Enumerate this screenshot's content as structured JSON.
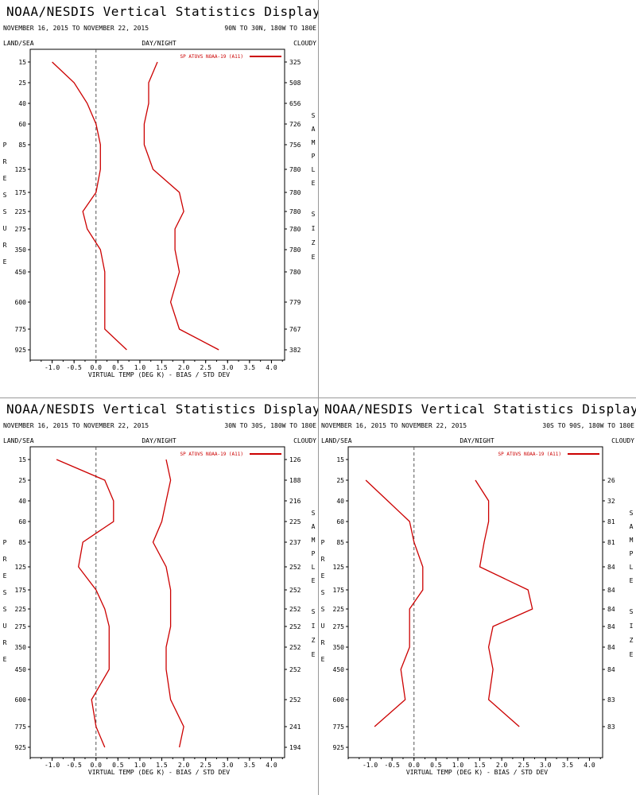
{
  "colors": {
    "series": "#cc0000",
    "axis": "#000000",
    "zero_line": "#555555"
  },
  "x_ticks": [
    "-1.0",
    "-0.5",
    "0.0",
    "0.5",
    "1.0",
    "1.5",
    "2.0",
    "2.5",
    "3.0",
    "3.5",
    "4.0"
  ],
  "panels": [
    {
      "title": "NOAA/NESDIS Vertical Statistics Display",
      "date_range": "NOVEMBER 16, 2015 TO NOVEMBER 22, 2015",
      "region": "90N TO 30N, 180W TO 180E",
      "land_sea": "LAND/SEA",
      "day_night": "DAY/NIGHT",
      "cloudy": "CLOUDY",
      "legend": "SP ATOVS NOAA-19 (A11)",
      "y_label": "PRESSURE",
      "right_label_1": "SAMPLE",
      "right_label_2": "SIZE",
      "x_label": "VIRTUAL TEMP (DEG K) - BIAS / STD DEV",
      "pressure_levels": [
        "15",
        "25",
        "40",
        "60",
        "85",
        "125",
        "175",
        "225",
        "275",
        "350",
        "450",
        "600",
        "775",
        "925"
      ],
      "sample_sizes": [
        "325",
        "508",
        "656",
        "726",
        "756",
        "780",
        "780",
        "780",
        "780",
        "780",
        "780",
        "779",
        "767",
        "382"
      ]
    },
    {
      "title": "NOAA/NESDIS Vertical Statistics Display",
      "date_range": "NOVEMBER 16, 2015 TO NOVEMBER 22, 2015",
      "region": "30N TO 30S, 180W TO 180E",
      "land_sea": "LAND/SEA",
      "day_night": "DAY/NIGHT",
      "cloudy": "CLOUDY",
      "legend": "SP ATOVS NOAA-19 (A11)",
      "y_label": "PRESSURE",
      "right_label_1": "SAMPLE",
      "right_label_2": "SIZE",
      "x_label": "VIRTUAL TEMP (DEG K) - BIAS / STD DEV",
      "pressure_levels": [
        "15",
        "25",
        "40",
        "60",
        "85",
        "125",
        "175",
        "225",
        "275",
        "350",
        "450",
        "600",
        "775",
        "925"
      ],
      "sample_sizes": [
        "126",
        "188",
        "216",
        "225",
        "237",
        "252",
        "252",
        "252",
        "252",
        "252",
        "252",
        "252",
        "241",
        "194"
      ]
    },
    {
      "title": "NOAA/NESDIS Vertical Statistics Display",
      "date_range": "NOVEMBER 16, 2015 TO NOVEMBER 22, 2015",
      "region": "30S TO 90S, 180W TO 180E",
      "land_sea": "LAND/SEA",
      "day_night": "DAY/NIGHT",
      "cloudy": "CLOUDY",
      "legend": "SP ATOVS NOAA-19 (A11)",
      "y_label": "PRESSURE",
      "right_label_1": "SAMPLE",
      "right_label_2": "SIZE",
      "x_label": "VIRTUAL TEMP (DEG K) - BIAS / STD DEV",
      "pressure_levels": [
        "15",
        "25",
        "40",
        "60",
        "85",
        "125",
        "175",
        "225",
        "275",
        "350",
        "450",
        "600",
        "775",
        "925"
      ],
      "sample_sizes": [
        "",
        "26",
        "32",
        "81",
        "81",
        "84",
        "84",
        "84",
        "84",
        "84",
        "84",
        "83",
        "83",
        ""
      ]
    }
  ],
  "chart_data": [
    {
      "type": "line",
      "title": "NOAA/NESDIS Vertical Statistics Display",
      "xlabel": "VIRTUAL TEMP (DEG K) - BIAS / STD DEV",
      "ylabel": "PRESSURE",
      "xlim": [
        -1.5,
        4.3
      ],
      "y_levels": [
        "15",
        "25",
        "40",
        "60",
        "85",
        "125",
        "175",
        "225",
        "275",
        "350",
        "450",
        "600",
        "775",
        "925"
      ],
      "series": [
        {
          "name": "SP ATOVS NOAA-19 (A11)",
          "stat": "bias",
          "points": [
            [
              -1.0,
              "15"
            ],
            [
              -0.5,
              "25"
            ],
            [
              -0.2,
              "40"
            ],
            [
              0.0,
              "60"
            ],
            [
              0.1,
              "85"
            ],
            [
              0.1,
              "125"
            ],
            [
              0.0,
              "175"
            ],
            [
              -0.3,
              "225"
            ],
            [
              -0.2,
              "275"
            ],
            [
              0.1,
              "350"
            ],
            [
              0.2,
              "450"
            ],
            [
              0.2,
              "600"
            ],
            [
              0.2,
              "775"
            ],
            [
              0.7,
              "925"
            ]
          ]
        },
        {
          "name": "",
          "stat": "std_dev",
          "points": [
            [
              1.4,
              "15"
            ],
            [
              1.2,
              "25"
            ],
            [
              1.2,
              "40"
            ],
            [
              1.1,
              "60"
            ],
            [
              1.1,
              "85"
            ],
            [
              1.3,
              "125"
            ],
            [
              1.9,
              "175"
            ],
            [
              2.0,
              "225"
            ],
            [
              1.8,
              "275"
            ],
            [
              1.8,
              "350"
            ],
            [
              1.9,
              "450"
            ],
            [
              1.7,
              "600"
            ],
            [
              1.9,
              "775"
            ],
            [
              2.8,
              "925"
            ]
          ]
        }
      ]
    },
    {
      "type": "line",
      "title": "NOAA/NESDIS Vertical Statistics Display",
      "xlabel": "VIRTUAL TEMP (DEG K) - BIAS / STD DEV",
      "ylabel": "PRESSURE",
      "xlim": [
        -1.5,
        4.3
      ],
      "y_levels": [
        "15",
        "25",
        "40",
        "60",
        "85",
        "125",
        "175",
        "225",
        "275",
        "350",
        "450",
        "600",
        "775",
        "925"
      ],
      "series": [
        {
          "name": "SP ATOVS NOAA-19 (A11)",
          "stat": "bias",
          "points": [
            [
              -0.9,
              "15"
            ],
            [
              0.2,
              "25"
            ],
            [
              0.4,
              "40"
            ],
            [
              0.4,
              "60"
            ],
            [
              -0.3,
              "85"
            ],
            [
              -0.4,
              "125"
            ],
            [
              0.0,
              "175"
            ],
            [
              0.2,
              "225"
            ],
            [
              0.3,
              "275"
            ],
            [
              0.3,
              "350"
            ],
            [
              0.3,
              "450"
            ],
            [
              -0.1,
              "600"
            ],
            [
              0.0,
              "775"
            ],
            [
              0.2,
              "925"
            ]
          ]
        },
        {
          "name": "",
          "stat": "std_dev",
          "points": [
            [
              1.6,
              "15"
            ],
            [
              1.7,
              "25"
            ],
            [
              1.6,
              "40"
            ],
            [
              1.5,
              "60"
            ],
            [
              1.3,
              "85"
            ],
            [
              1.6,
              "125"
            ],
            [
              1.7,
              "175"
            ],
            [
              1.7,
              "225"
            ],
            [
              1.7,
              "275"
            ],
            [
              1.6,
              "350"
            ],
            [
              1.6,
              "450"
            ],
            [
              1.7,
              "600"
            ],
            [
              2.0,
              "775"
            ],
            [
              1.9,
              "925"
            ]
          ]
        }
      ]
    },
    {
      "type": "line",
      "title": "NOAA/NESDIS Vertical Statistics Display",
      "xlabel": "VIRTUAL TEMP (DEG K) - BIAS / STD DEV",
      "ylabel": "PRESSURE",
      "xlim": [
        -1.5,
        4.3
      ],
      "y_levels": [
        "15",
        "25",
        "40",
        "60",
        "85",
        "125",
        "175",
        "225",
        "275",
        "350",
        "450",
        "600",
        "775",
        "925"
      ],
      "series": [
        {
          "name": "SP ATOVS NOAA-19 (A11)",
          "stat": "bias",
          "points": [
            [
              -1.1,
              "25"
            ],
            [
              -0.6,
              "40"
            ],
            [
              -0.1,
              "60"
            ],
            [
              0.0,
              "85"
            ],
            [
              0.2,
              "125"
            ],
            [
              0.2,
              "175"
            ],
            [
              -0.1,
              "225"
            ],
            [
              -0.1,
              "275"
            ],
            [
              -0.1,
              "350"
            ],
            [
              -0.3,
              "450"
            ],
            [
              -0.2,
              "600"
            ],
            [
              -0.9,
              "775"
            ]
          ]
        },
        {
          "name": "",
          "stat": "std_dev",
          "points": [
            [
              1.4,
              "25"
            ],
            [
              1.7,
              "40"
            ],
            [
              1.7,
              "60"
            ],
            [
              1.6,
              "85"
            ],
            [
              1.5,
              "125"
            ],
            [
              2.6,
              "175"
            ],
            [
              2.7,
              "225"
            ],
            [
              1.8,
              "275"
            ],
            [
              1.7,
              "350"
            ],
            [
              1.8,
              "450"
            ],
            [
              1.7,
              "600"
            ],
            [
              2.4,
              "775"
            ]
          ]
        }
      ]
    }
  ]
}
